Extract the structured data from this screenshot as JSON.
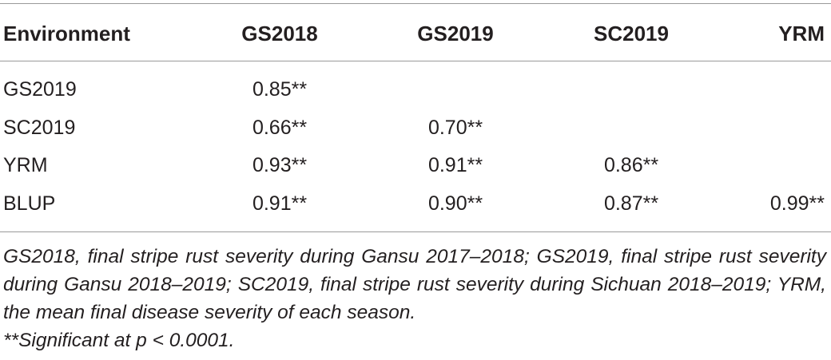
{
  "table": {
    "header": [
      "Environment",
      "GS2018",
      "GS2019",
      "SC2019",
      "YRM"
    ],
    "rows": [
      {
        "label": "GS2019",
        "values": [
          "0.85**"
        ]
      },
      {
        "label": "SC2019",
        "values": [
          "0.66**",
          "0.70**"
        ]
      },
      {
        "label": "YRM",
        "values": [
          "0.93**",
          "0.91**",
          "0.86**"
        ]
      },
      {
        "label": "BLUP",
        "values": [
          "0.91**",
          "0.90**",
          "0.87**",
          "0.99**"
        ]
      }
    ]
  },
  "footnote": {
    "note": "GS2018, final stripe rust severity during Gansu 2017–2018; GS2019, final stripe rust severity during Gansu 2018–2019; SC2019, final stripe rust severity during Sichuan 2018–2019; YRM, the mean final disease severity of each season.",
    "significance": "**Significant at p < 0.0001."
  }
}
